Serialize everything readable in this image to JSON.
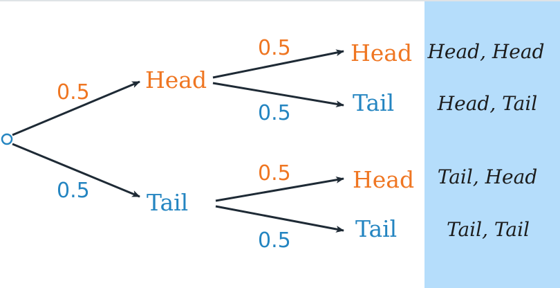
{
  "colors": {
    "head": "#ef7622",
    "tail": "#2485c1",
    "arrow": "#1e2a35",
    "panel": "#b5ddfb"
  },
  "branches": {
    "p_root_head": "0.5",
    "p_root_tail": "0.5",
    "p_hh": "0.5",
    "p_ht": "0.5",
    "p_th": "0.5",
    "p_tt": "0.5"
  },
  "nodes": {
    "head": "Head",
    "tail": "Tail",
    "hh": "Head",
    "ht": "Tail",
    "th": "Head",
    "tt": "Tail"
  },
  "outcomes": [
    "Head, Head",
    "Head, Tail",
    "Tail, Head",
    "Tail, Tail"
  ]
}
